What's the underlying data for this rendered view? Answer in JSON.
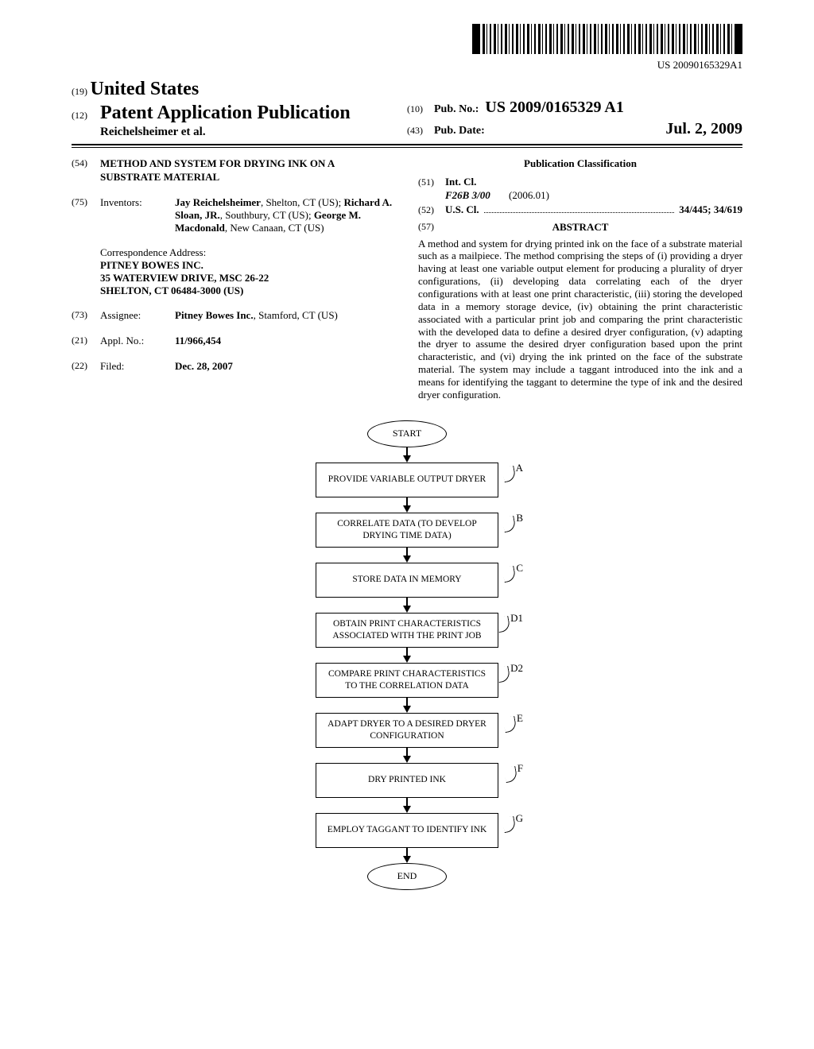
{
  "barcode_label": "US 20090165329A1",
  "header": {
    "country_num": "(19)",
    "country": "United States",
    "pubtype_num": "(12)",
    "pubtype": "Patent Application Publication",
    "authors": "Reichelsheimer et al.",
    "pubno_num": "(10)",
    "pubno_lbl": "Pub. No.:",
    "pubno_val": "US 2009/0165329 A1",
    "pubdate_num": "(43)",
    "pubdate_lbl": "Pub. Date:",
    "pubdate_val": "Jul. 2, 2009"
  },
  "left": {
    "title_num": "(54)",
    "title": "METHOD AND SYSTEM FOR DRYING INK ON A SUBSTRATE MATERIAL",
    "inventors_num": "(75)",
    "inventors_lbl": "Inventors:",
    "inventors_html": "<b>Jay Reichelsheimer</b>, Shelton, CT (US); <b>Richard A. Sloan, JR.</b>, Southbury, CT (US); <b>George M. Macdonald</b>, New Canaan, CT (US)",
    "corr_lbl": "Correspondence Address:",
    "corr_lines": [
      "PITNEY BOWES INC.",
      "35 WATERVIEW DRIVE, MSC 26-22",
      "SHELTON, CT 06484-3000 (US)"
    ],
    "assignee_num": "(73)",
    "assignee_lbl": "Assignee:",
    "assignee_html": "<b>Pitney Bowes Inc.</b>, Stamford, CT (US)",
    "applno_num": "(21)",
    "applno_lbl": "Appl. No.:",
    "applno_val": "11/966,454",
    "filed_num": "(22)",
    "filed_lbl": "Filed:",
    "filed_val": "Dec. 28, 2007"
  },
  "right": {
    "pubclass_head": "Publication Classification",
    "intcl_num": "(51)",
    "intcl_lbl": "Int. Cl.",
    "intcl_code": "F26B 3/00",
    "intcl_year": "(2006.01)",
    "uscl_num": "(52)",
    "uscl_lbl": "U.S. Cl.",
    "uscl_val": "34/445; 34/619",
    "abstract_num": "(57)",
    "abstract_head": "ABSTRACT",
    "abstract_text": "A method and system for drying printed ink on the face of a substrate material such as a mailpiece. The method comprising the steps of (i) providing a dryer having at least one variable output element for producing a plurality of dryer configurations, (ii) developing data correlating each of the dryer configurations with at least one print characteristic, (iii) storing the developed data in a memory storage device, (iv) obtaining the print characteristic associated with a particular print job and comparing the print characteristic with the developed data to define a desired dryer configuration, (v) adapting the dryer to assume the desired dryer configuration based upon the print characteristic, and (vi) drying the ink printed on the face of the substrate material. The system may include a taggant introduced into the ink and a means for identifying the taggant to determine the type of ink and the desired dryer configuration."
  },
  "flow": {
    "start": "START",
    "end": "END",
    "steps": [
      {
        "label": "A",
        "text": "PROVIDE VARIABLE OUTPUT DRYER"
      },
      {
        "label": "B",
        "text": "CORRELATE DATA (TO DEVELOP DRYING TIME DATA)"
      },
      {
        "label": "C",
        "text": "STORE DATA IN MEMORY"
      },
      {
        "label": "D1",
        "text": "OBTAIN PRINT CHARACTERISTICS ASSOCIATED WITH THE PRINT JOB"
      },
      {
        "label": "D2",
        "text": "COMPARE PRINT CHARACTERISTICS TO THE CORRELATION DATA"
      },
      {
        "label": "E",
        "text": "ADAPT DRYER TO A DESIRED DRYER CONFIGURATION"
      },
      {
        "label": "F",
        "text": "DRY PRINTED INK"
      },
      {
        "label": "G",
        "text": "EMPLOY TAGGANT TO IDENTIFY INK"
      }
    ]
  },
  "colors": {
    "text": "#000000",
    "bg": "#ffffff"
  }
}
